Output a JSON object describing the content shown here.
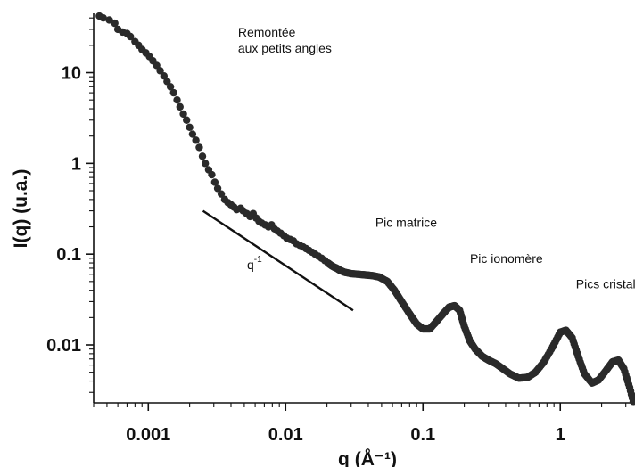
{
  "chart_data": {
    "type": "scatter",
    "title": "",
    "xlabel": "q (Å⁻¹)",
    "ylabel": "I(q) (u.a.)",
    "x_scale": "log",
    "y_scale": "log",
    "xlim": [
      0.0004,
      3.5
    ],
    "ylim": [
      0.0023,
      45
    ],
    "grid": false,
    "x_ticks": [
      {
        "value": 0.001,
        "label": "0.001"
      },
      {
        "value": 0.01,
        "label": "0.01"
      },
      {
        "value": 0.1,
        "label": "0.1"
      },
      {
        "value": 1,
        "label": "1"
      }
    ],
    "y_ticks": [
      {
        "value": 0.01,
        "label": "0.01"
      },
      {
        "value": 0.1,
        "label": "0.1"
      },
      {
        "value": 1,
        "label": "1"
      },
      {
        "value": 10,
        "label": "10"
      }
    ],
    "series": [
      {
        "name": "",
        "color": "#2a2a2a",
        "x": [
          0.00044,
          0.00047,
          0.00052,
          0.00057,
          0.0006,
          0.00065,
          0.0007,
          0.00074,
          0.0008,
          0.00085,
          0.0009,
          0.00096,
          0.00102,
          0.00108,
          0.00115,
          0.00122,
          0.0013,
          0.00137,
          0.00145,
          0.00153,
          0.00162,
          0.0017,
          0.0018,
          0.0019,
          0.002,
          0.0021,
          0.00222,
          0.00235,
          0.00248,
          0.0026,
          0.00275,
          0.0029,
          0.00305,
          0.0032,
          0.0034,
          0.0036,
          0.0038,
          0.004,
          0.0042,
          0.0044,
          0.0047,
          0.0049,
          0.0052,
          0.0055,
          0.0058,
          0.0061,
          0.0064,
          0.0067,
          0.0071,
          0.0075,
          0.0079,
          0.0083,
          0.0087,
          0.0092,
          0.0097,
          0.0102,
          0.0108,
          0.0114,
          0.012,
          0.0127,
          0.0134,
          0.0141,
          0.0148,
          0.0156,
          0.0164,
          0.0173,
          0.0183,
          0.0193,
          0.0203,
          0.0215,
          0.0225,
          0.0235,
          0.025,
          0.027,
          0.03,
          0.034,
          0.038,
          0.043,
          0.048,
          0.055,
          0.062,
          0.07,
          0.08,
          0.09,
          0.1,
          0.112,
          0.125,
          0.14,
          0.155,
          0.17,
          0.185,
          0.2,
          0.22,
          0.24,
          0.27,
          0.3,
          0.34,
          0.38,
          0.43,
          0.5,
          0.58,
          0.66,
          0.76,
          0.88,
          1.0,
          1.1,
          1.22,
          1.35,
          1.5,
          1.7,
          1.9,
          2.15,
          2.4,
          2.65,
          2.9,
          3.2,
          3.5
        ],
        "y": [
          42,
          40,
          38,
          35,
          30,
          28,
          27,
          25,
          22,
          20,
          18,
          16.5,
          15,
          13.5,
          12,
          10.5,
          9.2,
          8.0,
          7.0,
          6.0,
          5.0,
          4.2,
          3.5,
          3.0,
          2.5,
          2.1,
          1.8,
          1.5,
          1.2,
          1.0,
          0.85,
          0.75,
          0.62,
          0.53,
          0.46,
          0.4,
          0.37,
          0.35,
          0.33,
          0.31,
          0.32,
          0.3,
          0.28,
          0.26,
          0.28,
          0.25,
          0.23,
          0.22,
          0.21,
          0.2,
          0.21,
          0.19,
          0.18,
          0.17,
          0.16,
          0.15,
          0.145,
          0.14,
          0.13,
          0.125,
          0.12,
          0.115,
          0.11,
          0.105,
          0.1,
          0.095,
          0.09,
          0.085,
          0.08,
          0.075,
          0.072,
          0.07,
          0.066,
          0.063,
          0.061,
          0.06,
          0.059,
          0.058,
          0.056,
          0.05,
          0.04,
          0.03,
          0.022,
          0.017,
          0.015,
          0.015,
          0.018,
          0.022,
          0.026,
          0.027,
          0.024,
          0.016,
          0.011,
          0.009,
          0.0075,
          0.0068,
          0.0062,
          0.0055,
          0.0048,
          0.0043,
          0.0044,
          0.005,
          0.0065,
          0.0095,
          0.0138,
          0.0145,
          0.012,
          0.0075,
          0.0048,
          0.0038,
          0.0041,
          0.0052,
          0.0065,
          0.0068,
          0.0055,
          0.0034,
          0.002
        ]
      }
    ],
    "slope_line": {
      "label_base": "q",
      "label_exponent": "-1",
      "x": [
        0.0025,
        0.031
      ],
      "y": [
        0.3,
        0.024
      ]
    },
    "annotations": [
      {
        "id": "small-angle-upturn",
        "lines": [
          "Remontée",
          "aux petits angles"
        ],
        "x": 0.0045,
        "y": 25
      },
      {
        "id": "matrix-peak",
        "lines": [
          "Pic matrice"
        ],
        "x": 0.045,
        "y": 0.2
      },
      {
        "id": "ionomer-peak",
        "lines": [
          "Pic ionomère"
        ],
        "x": 0.22,
        "y": 0.08
      },
      {
        "id": "crystalline-peaks",
        "lines": [
          "Pics cristallins"
        ],
        "x": 1.3,
        "y": 0.042
      }
    ]
  }
}
